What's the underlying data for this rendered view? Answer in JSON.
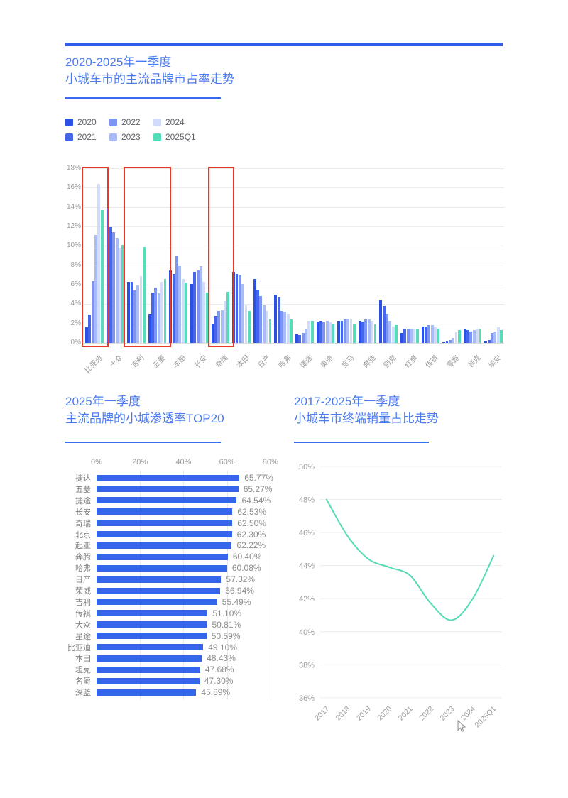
{
  "theme": {
    "page_bg": "#ffffff",
    "accent_bar": "#2f5ce8",
    "title_color": "#4a7bf1",
    "underline": "#3a6cf0",
    "axis_text": "#9b9b9b",
    "label_text": "#7f7f7f",
    "grid_line": "#ececec",
    "highlight_red": "#e8382a",
    "legend_text": "#5f6368"
  },
  "chart_data": [
    {
      "id": "brand-share-trend",
      "type": "bar",
      "title_line1": "2020-2025年一季度",
      "title_line2": "小城车市的主流品牌市占率走势",
      "categories": [
        "比亚迪",
        "大众",
        "吉利",
        "五菱",
        "丰田",
        "长安",
        "奇瑞",
        "本田",
        "日产",
        "哈弗",
        "捷途",
        "奥迪",
        "宝马",
        "奔驰",
        "别克",
        "红旗",
        "传祺",
        "零跑",
        "领克",
        "埃安"
      ],
      "series": [
        {
          "name": "2020",
          "color": "#2b50e6",
          "values": [
            1.6,
            13.8,
            6.3,
            3.0,
            7.5,
            6.1,
            2.0,
            7.3,
            6.6,
            5.0,
            0.9,
            2.2,
            2.3,
            2.3,
            4.4,
            1.0,
            1.7,
            0.1,
            1.4,
            0.2
          ]
        },
        {
          "name": "2021",
          "color": "#4565ea",
          "values": [
            2.9,
            11.9,
            6.3,
            5.2,
            7.1,
            7.3,
            2.8,
            7.1,
            5.5,
            4.7,
            0.8,
            2.3,
            2.3,
            2.2,
            3.8,
            1.5,
            1.7,
            0.2,
            1.3,
            0.3
          ]
        },
        {
          "name": "2022",
          "color": "#7d95f0",
          "values": [
            6.4,
            11.4,
            5.4,
            5.7,
            9.0,
            7.5,
            3.3,
            7.0,
            4.8,
            3.3,
            1.0,
            2.2,
            2.4,
            2.4,
            3.0,
            1.5,
            1.8,
            0.3,
            1.2,
            1.0
          ]
        },
        {
          "name": "2023",
          "color": "#a9bcf5",
          "values": [
            11.1,
            10.8,
            5.9,
            5.1,
            8.0,
            7.9,
            3.4,
            6.1,
            3.9,
            3.2,
            1.4,
            2.3,
            2.5,
            2.4,
            2.3,
            1.5,
            1.8,
            0.5,
            1.3,
            1.2
          ]
        },
        {
          "name": "2024",
          "color": "#d0dcf9",
          "values": [
            16.4,
            9.8,
            6.9,
            6.3,
            6.6,
            6.3,
            4.3,
            3.9,
            3.3,
            3.0,
            2.3,
            2.1,
            2.5,
            2.3,
            1.6,
            1.5,
            1.7,
            1.1,
            1.4,
            1.6
          ]
        },
        {
          "name": "2025Q1",
          "color": "#55ddb9",
          "values": [
            13.7,
            10.1,
            9.9,
            6.6,
            6.2,
            5.2,
            5.3,
            3.3,
            2.4,
            2.4,
            2.3,
            2.0,
            2.0,
            1.9,
            1.8,
            1.4,
            1.5,
            1.3,
            1.5,
            1.3
          ]
        }
      ],
      "ylim": [
        0,
        18
      ],
      "ytick_labels": [
        "0%",
        "2%",
        "4%",
        "6%",
        "8%",
        "10%",
        "12%",
        "14%",
        "16%",
        "18%"
      ],
      "grid": true,
      "legend_position": "top-left",
      "highlight_boxes": [
        {
          "from_index": 0,
          "to_index": 0
        },
        {
          "from_index": 2,
          "to_index": 3
        },
        {
          "from_index": 6,
          "to_index": 6
        }
      ],
      "highlight_color": "#e8382a"
    },
    {
      "id": "penetration-top20",
      "type": "bar",
      "orientation": "horizontal",
      "title_line1": "2025年一季度",
      "title_line2": "主流品牌的小城渗透率TOP20",
      "categories": [
        "捷达",
        "五菱",
        "捷途",
        "长安",
        "奇瑞",
        "北京",
        "起亚",
        "奔腾",
        "哈弗",
        "日产",
        "荣威",
        "吉利",
        "传祺",
        "大众",
        "星途",
        "比亚迪",
        "本田",
        "坦克",
        "名爵",
        "深蓝"
      ],
      "values": [
        65.77,
        65.27,
        64.54,
        62.53,
        62.5,
        62.3,
        62.22,
        60.4,
        60.08,
        57.32,
        56.94,
        55.49,
        51.1,
        50.81,
        50.59,
        49.1,
        48.43,
        47.68,
        47.3,
        45.89
      ],
      "value_labels": [
        "65.77%",
        "65.27%",
        "64.54%",
        "62.53%",
        "62.50%",
        "62.30%",
        "62.22%",
        "60.40%",
        "60.08%",
        "57.32%",
        "56.94%",
        "55.49%",
        "51.10%",
        "50.81%",
        "50.59%",
        "49.10%",
        "48.43%",
        "47.68%",
        "47.30%",
        "45.89%"
      ],
      "xlim": [
        0,
        80
      ],
      "xtick_labels": [
        "0%",
        "20%",
        "40%",
        "60%",
        "80%"
      ],
      "bar_color": "#3565ea",
      "grid": true
    },
    {
      "id": "small-city-sales-share",
      "type": "line",
      "title_line1": "2017-2025年一季度",
      "title_line2": "小城车市终端销量占比走势",
      "x": [
        "2017",
        "2018",
        "2019",
        "2020",
        "2021",
        "2022",
        "2023",
        "2024",
        "2025Q1"
      ],
      "values": [
        48.0,
        45.8,
        44.4,
        43.9,
        43.4,
        41.7,
        40.7,
        42.0,
        44.6
      ],
      "ylim": [
        36,
        50
      ],
      "ytick_labels": [
        "36%",
        "38%",
        "40%",
        "42%",
        "44%",
        "46%",
        "48%",
        "50%"
      ],
      "line_color": "#55dcb6",
      "grid": true,
      "legend_position": "none"
    }
  ]
}
